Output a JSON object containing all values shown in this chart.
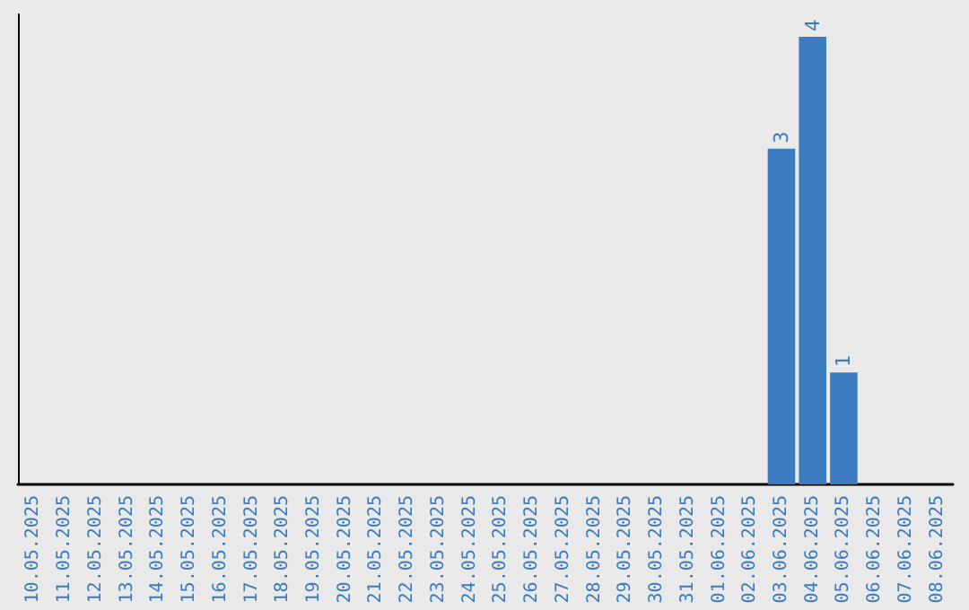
{
  "chart_data": {
    "type": "bar",
    "categories": [
      "10.05.2025",
      "11.05.2025",
      "12.05.2025",
      "13.05.2025",
      "14.05.2025",
      "15.05.2025",
      "16.05.2025",
      "17.05.2025",
      "18.05.2025",
      "19.05.2025",
      "20.05.2025",
      "21.05.2025",
      "22.05.2025",
      "23.05.2025",
      "24.05.2025",
      "25.05.2025",
      "26.05.2025",
      "27.05.2025",
      "28.05.2025",
      "29.05.2025",
      "30.05.2025",
      "31.05.2025",
      "01.06.2025",
      "02.06.2025",
      "03.06.2025",
      "04.06.2025",
      "05.06.2025",
      "06.06.2025",
      "07.06.2025",
      "08.06.2025"
    ],
    "values": [
      null,
      null,
      null,
      null,
      null,
      null,
      null,
      null,
      null,
      null,
      null,
      null,
      null,
      null,
      null,
      null,
      null,
      null,
      null,
      null,
      null,
      null,
      null,
      null,
      3,
      4,
      1,
      null,
      null,
      null
    ],
    "data_labels": true,
    "color": "#3b7cc0",
    "tick_labels": "x",
    "grid": false
  }
}
